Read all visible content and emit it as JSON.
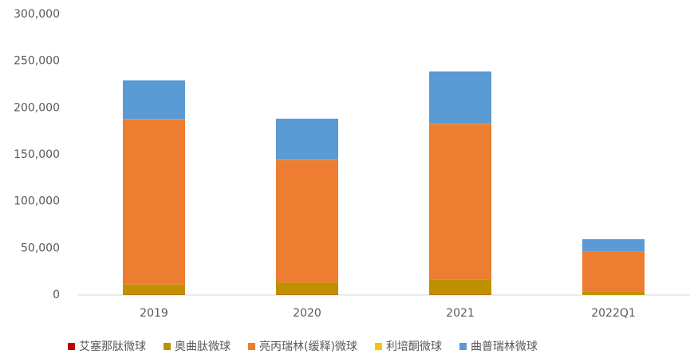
{
  "chart_data": {
    "type": "stacked_bar",
    "categories": [
      "2019",
      "2020",
      "2021",
      "2022Q1"
    ],
    "series": [
      {
        "name": "艾塞那肽微球",
        "color": "#c00000",
        "values": [
          300,
          300,
          300,
          100
        ]
      },
      {
        "name": "奥曲肽微球",
        "color": "#bf9000",
        "values": [
          11000,
          13000,
          16000,
          4000
        ]
      },
      {
        "name": "亮丙瑞林(缓释)微球",
        "color": "#ed7d31",
        "values": [
          176500,
          131000,
          166500,
          42000
        ]
      },
      {
        "name": "利培酮微球",
        "color": "#ffc000",
        "values": [
          200,
          200,
          200,
          100
        ]
      },
      {
        "name": "曲普瑞林微球",
        "color": "#5b9bd5",
        "values": [
          41500,
          44000,
          56000,
          13500
        ]
      }
    ],
    "ylim": [
      0,
      300000
    ],
    "yticks": [
      0,
      {
        "value": 50000,
        "label": "50,000"
      },
      {
        "value": 100000,
        "label": "100,000"
      },
      {
        "value": 150000,
        "label": "150,000"
      },
      {
        "value": 200000,
        "label": "200,000"
      },
      {
        "value": 250000,
        "label": "250,000"
      },
      {
        "value": 300000,
        "label": "300,000"
      }
    ],
    "grid": false,
    "legend": "bottom"
  }
}
